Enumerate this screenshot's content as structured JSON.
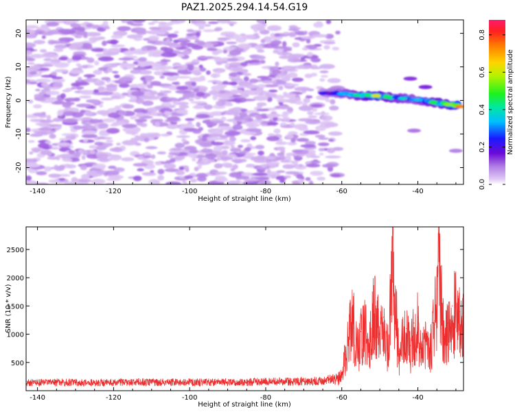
{
  "figure": {
    "title": "PAZ1.2025.294.14.54.G19"
  },
  "chart_data": [
    {
      "type": "heatmap",
      "xlabel": "Height of straight line (km)",
      "ylabel": "Frequency (Hz)",
      "xlim": [
        -143,
        -28
      ],
      "ylim": [
        -25,
        24
      ],
      "xticks": [
        -140,
        -120,
        -100,
        -80,
        -60,
        -40
      ],
      "xtick_labels": [
        "-140",
        "-120",
        "-100",
        "-80",
        "-60",
        "-40"
      ],
      "yticks": [
        -20,
        -10,
        0,
        10,
        20
      ],
      "ytick_labels": [
        "-20",
        "-10",
        "0",
        "10",
        "20"
      ],
      "noise_region_x": [
        -143,
        -61
      ],
      "noise_amplitude_range": [
        0.0,
        0.12
      ],
      "signal_band": [
        {
          "x": -65,
          "y": 2.2,
          "amp": 0.22
        },
        {
          "x": -60,
          "y": 2.0,
          "amp": 0.33
        },
        {
          "x": -56,
          "y": 1.6,
          "amp": 0.42
        },
        {
          "x": -51,
          "y": 1.4,
          "amp": 0.62
        },
        {
          "x": -48,
          "y": 1.0,
          "amp": 0.45
        },
        {
          "x": -44,
          "y": 0.6,
          "amp": 0.38
        },
        {
          "x": -40,
          "y": 0.2,
          "amp": 0.34
        },
        {
          "x": -36,
          "y": -0.5,
          "amp": 0.46
        },
        {
          "x": -32,
          "y": -1.2,
          "amp": 0.55
        },
        {
          "x": -29,
          "y": -1.8,
          "amp": 0.74
        }
      ],
      "signal_branch": [
        {
          "x": -42,
          "y": 6.5,
          "amp": 0.14
        },
        {
          "x": -38,
          "y": 4.0,
          "amp": 0.15
        },
        {
          "x": -41,
          "y": -9.0,
          "amp": 0.1
        },
        {
          "x": -30,
          "y": -15.0,
          "amp": 0.09
        }
      ],
      "colorbar": {
        "label": "Normalized spectral amplitude",
        "range": [
          0.0,
          0.88
        ],
        "ticks": [
          0.0,
          0.2,
          0.4,
          0.6,
          0.8
        ],
        "tick_labels": [
          "0.0",
          "0.2",
          "0.4",
          "0.6",
          "0.8"
        ]
      }
    },
    {
      "type": "line",
      "xlabel": "Height of straight line (km)",
      "ylabel": "SNR (10 * v/v)",
      "xlim": [
        -143,
        -28
      ],
      "ylim": [
        0,
        2900
      ],
      "xticks": [
        -140,
        -120,
        -100,
        -80,
        -60,
        -40
      ],
      "xtick_labels": [
        "-140",
        "-120",
        "-100",
        "-80",
        "-60",
        "-40"
      ],
      "yticks": [
        500,
        1000,
        1500,
        2000,
        2500
      ],
      "ytick_labels": [
        "500",
        "1000",
        "1500",
        "2000",
        "2500"
      ],
      "color": "#ee2e2e",
      "series": [
        {
          "name": "SNR",
          "x": [
            -143,
            -135,
            -125,
            -115,
            -105,
            -95,
            -85,
            -80,
            -75,
            -70,
            -65,
            -62,
            -60,
            -59,
            -58,
            -57,
            -56,
            -55,
            -54,
            -53,
            -52,
            -51,
            -50,
            -49,
            -48,
            -47,
            -46.5,
            -46,
            -45,
            -44,
            -43,
            -42,
            -41,
            -40,
            -39,
            -38,
            -37,
            -36,
            -35,
            -34.5,
            -34,
            -33,
            -32,
            -31,
            -30,
            -29,
            -28
          ],
          "y": [
            140,
            150,
            140,
            150,
            150,
            150,
            150,
            160,
            160,
            165,
            175,
            220,
            300,
            700,
            1100,
            1400,
            800,
            1050,
            1200,
            900,
            1400,
            1500,
            1000,
            1300,
            900,
            1800,
            2900,
            1700,
            700,
            1000,
            1100,
            800,
            1200,
            1300,
            800,
            900,
            700,
            1200,
            1800,
            2700,
            1900,
            1000,
            1200,
            1500,
            1600,
            1400,
            1300
          ]
        }
      ]
    }
  ]
}
